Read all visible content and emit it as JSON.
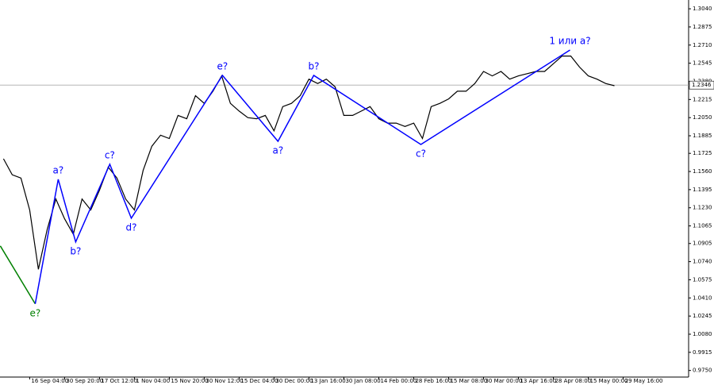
{
  "chart_data": {
    "type": "line",
    "color": "#000000",
    "xlim": [
      -0.4,
      78.5
    ],
    "ylim": [
      0.969,
      1.312
    ],
    "xticks": [
      {
        "value": 3,
        "label": "16 Sep 04:00"
      },
      {
        "value": 7,
        "label": "30 Sep 20:00"
      },
      {
        "value": 11,
        "label": "17 Oct 12:00"
      },
      {
        "value": 15,
        "label": "1 Nov 04:00"
      },
      {
        "value": 19,
        "label": "15 Nov 20:00"
      },
      {
        "value": 23,
        "label": "30 Nov 12:00"
      },
      {
        "value": 27,
        "label": "15 Dec 04:00"
      },
      {
        "value": 31,
        "label": "30 Dec 00:00"
      },
      {
        "value": 35,
        "label": "13 Jan 16:00"
      },
      {
        "value": 39,
        "label": "30 Jan 08:00"
      },
      {
        "value": 43,
        "label": "14 Feb 00:00"
      },
      {
        "value": 47,
        "label": "28 Feb 16:00"
      },
      {
        "value": 51,
        "label": "15 Mar 08:00"
      },
      {
        "value": 55,
        "label": "30 Mar 00:00"
      },
      {
        "value": 59,
        "label": "13 Apr 16:00"
      },
      {
        "value": 63,
        "label": "28 Apr 08:00"
      },
      {
        "value": 67,
        "label": "15 May 00:00"
      },
      {
        "value": 71,
        "label": "29 May 16:00"
      }
    ],
    "yticks": [
      {
        "value": 1.304,
        "label": "1.3040"
      },
      {
        "value": 1.2875,
        "label": "1.2875"
      },
      {
        "value": 1.271,
        "label": "1.2710"
      },
      {
        "value": 1.2545,
        "label": "1.2545"
      },
      {
        "value": 1.238,
        "label": "1.2380"
      },
      {
        "value": 1.2215,
        "label": "1.2215"
      },
      {
        "value": 1.205,
        "label": "1.2050"
      },
      {
        "value": 1.1885,
        "label": "1.1885"
      },
      {
        "value": 1.1725,
        "label": "1.1725"
      },
      {
        "value": 1.156,
        "label": "1.1560"
      },
      {
        "value": 1.1395,
        "label": "1.1395"
      },
      {
        "value": 1.123,
        "label": "1.1230"
      },
      {
        "value": 1.1065,
        "label": "1.1065"
      },
      {
        "value": 1.0905,
        "label": "1.0905"
      },
      {
        "value": 1.074,
        "label": "1.0740"
      },
      {
        "value": 1.0575,
        "label": "1.0575"
      },
      {
        "value": 1.041,
        "label": "1.0410"
      },
      {
        "value": 1.0245,
        "label": "1.0245"
      },
      {
        "value": 1.008,
        "label": "1.0080"
      },
      {
        "value": 0.9915,
        "label": "0.9915"
      },
      {
        "value": 0.975,
        "label": "0.9750"
      }
    ],
    "x": [
      0,
      1,
      2,
      3,
      4,
      5,
      6,
      7,
      8,
      9,
      10,
      11,
      12,
      13,
      14,
      15,
      16,
      17,
      18,
      19,
      20,
      21,
      22,
      23,
      24,
      25,
      26,
      27,
      28,
      29,
      30,
      31,
      32,
      33,
      34,
      35,
      36,
      37,
      38,
      39,
      40,
      41,
      42,
      43,
      44,
      45,
      46,
      47,
      48,
      49,
      50,
      51,
      52,
      53,
      54,
      55,
      56,
      57,
      58,
      59,
      60,
      61,
      62,
      63,
      64,
      65,
      66,
      67,
      68,
      69,
      70
    ],
    "values": [
      1.1676,
      1.153,
      1.15,
      1.121,
      1.067,
      1.103,
      1.131,
      1.113,
      1.099,
      1.131,
      1.121,
      1.139,
      1.16,
      1.15,
      1.131,
      1.121,
      1.157,
      1.179,
      1.189,
      1.186,
      1.207,
      1.204,
      1.225,
      1.218,
      1.229,
      1.243,
      1.218,
      1.211,
      1.205,
      1.204,
      1.207,
      1.193,
      1.215,
      1.218,
      1.225,
      1.24,
      1.236,
      1.24,
      1.233,
      1.207,
      1.207,
      1.211,
      1.215,
      1.204,
      1.2,
      1.2,
      1.197,
      1.2,
      1.186,
      1.215,
      1.218,
      1.222,
      1.229,
      1.229,
      1.236,
      1.247,
      1.243,
      1.247,
      1.24,
      1.243,
      1.245,
      1.247,
      1.247,
      1.254,
      1.261,
      1.261,
      1.251,
      1.243,
      1.24,
      1.236,
      1.234
    ],
    "last_price": {
      "value": 1.2346,
      "label": "1.2346"
    },
    "waves": [
      {
        "color": "#008000",
        "x": [
          -0.36,
          3.64
        ],
        "y": [
          1.0883,
          1.0356
        ],
        "labels": [
          null,
          "e?"
        ]
      },
      {
        "color": "#0000ff",
        "x": [
          3.64,
          6.27,
          8.27,
          12.18,
          14.64,
          25.09,
          31.45,
          35.55,
          47.82,
          64.91
        ],
        "y": [
          1.0356,
          1.1489,
          1.0919,
          1.1626,
          1.1135,
          1.2434,
          1.1835,
          1.2434,
          1.1806,
          1.2665
        ],
        "labels": [
          null,
          "a?",
          "b?",
          "c?",
          "d?",
          "e?",
          "a?",
          "b?",
          "c?",
          "1 или a?"
        ]
      }
    ]
  }
}
